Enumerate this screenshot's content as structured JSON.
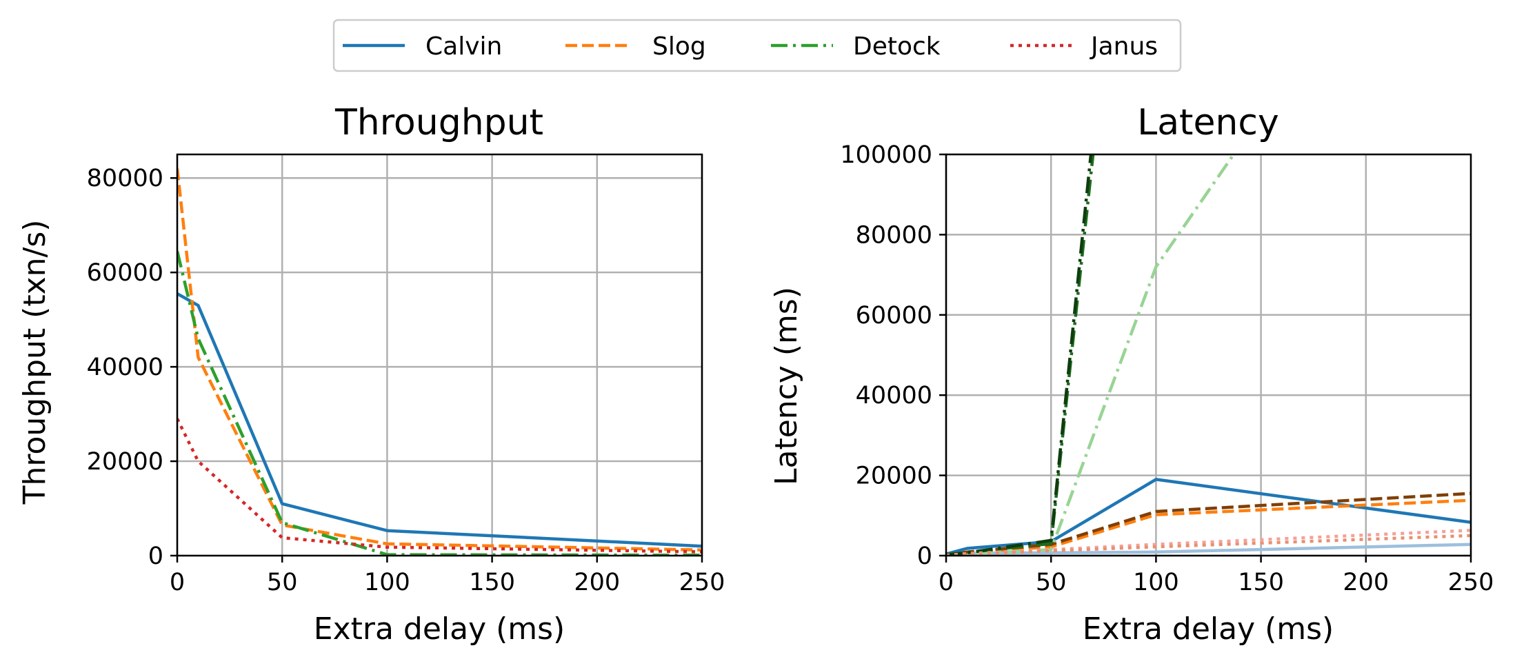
{
  "legend": {
    "items": [
      {
        "label": "Calvin",
        "color": "#1f77b4",
        "style": "solid"
      },
      {
        "label": "Slog",
        "color": "#ff7f0e",
        "style": "dashed"
      },
      {
        "label": "Detock",
        "color": "#2ca02c",
        "style": "dashdot"
      },
      {
        "label": "Janus",
        "color": "#d62728",
        "style": "dotted"
      }
    ]
  },
  "chart_data": [
    {
      "type": "line",
      "title": "Throughput",
      "xlabel": "Extra delay (ms)",
      "ylabel": "Throughput (txn/s)",
      "xlim": [
        0,
        250
      ],
      "ylim": [
        0,
        85000
      ],
      "xticks": [
        "0",
        "50",
        "100",
        "150",
        "200",
        "250"
      ],
      "yticks": [
        "0",
        "20000",
        "40000",
        "60000",
        "80000"
      ],
      "grid": true,
      "series": [
        {
          "name": "Calvin",
          "color": "#1f77b4",
          "style": "solid",
          "x": [
            0,
            10,
            50,
            100,
            250
          ],
          "y": [
            55500,
            53000,
            11000,
            5300,
            2000
          ]
        },
        {
          "name": "Slog",
          "color": "#ff7f0e",
          "style": "dashed",
          "x": [
            0,
            10,
            50,
            100,
            250
          ],
          "y": [
            82000,
            42000,
            6500,
            2500,
            1200
          ]
        },
        {
          "name": "Detock",
          "color": "#2ca02c",
          "style": "dashdot",
          "x": [
            0,
            10,
            50,
            100,
            250
          ],
          "y": [
            64500,
            46000,
            7000,
            200,
            100
          ]
        },
        {
          "name": "Janus",
          "color": "#d62728",
          "style": "dotted",
          "x": [
            0,
            10,
            50,
            100,
            250
          ],
          "y": [
            29000,
            20000,
            3800,
            1800,
            800
          ]
        }
      ]
    },
    {
      "type": "line",
      "title": "Latency",
      "xlabel": "Extra delay (ms)",
      "ylabel": "Latency (ms)",
      "xlim": [
        0,
        250
      ],
      "ylim": [
        0,
        100000
      ],
      "xticks": [
        "0",
        "50",
        "100",
        "150",
        "200",
        "250"
      ],
      "yticks": [
        "0",
        "20000",
        "40000",
        "60000",
        "80000",
        "100000"
      ],
      "grid": true,
      "series": [
        {
          "name": "Calvin",
          "color": "#9dbfdd",
          "style": "solid",
          "x": [
            0,
            10,
            50,
            100,
            250
          ],
          "y": [
            300,
            600,
            700,
            900,
            2800
          ]
        },
        {
          "name": "Calvin",
          "color": "#1f77b4",
          "style": "solid",
          "x": [
            0,
            10,
            50,
            100,
            250
          ],
          "y": [
            400,
            1800,
            3500,
            19000,
            8300
          ]
        },
        {
          "name": "Slog",
          "color": "#ff7f0e",
          "style": "dashed",
          "x": [
            0,
            10,
            50,
            100,
            250
          ],
          "y": [
            200,
            800,
            2200,
            10200,
            13800
          ]
        },
        {
          "name": "Slog",
          "color": "#7f3f07",
          "style": "dashed",
          "x": [
            0,
            10,
            50,
            100,
            250
          ],
          "y": [
            200,
            900,
            2800,
            11000,
            15500
          ]
        },
        {
          "name": "Detock",
          "color": "#98d494",
          "style": "dashdot",
          "x": [
            0,
            10,
            50,
            100,
            137
          ],
          "y": [
            200,
            500,
            1500,
            72000,
            100000
          ]
        },
        {
          "name": "Detock",
          "color": "#1d6b1d",
          "style": "dashdot",
          "x": [
            0,
            10,
            50,
            70
          ],
          "y": [
            200,
            800,
            3000,
            100000
          ]
        },
        {
          "name": "Detock",
          "color": "#0f3d0f",
          "style": "dashdot",
          "x": [
            0,
            10,
            50,
            69
          ],
          "y": [
            200,
            700,
            3800,
            100000
          ]
        },
        {
          "name": "Janus",
          "color": "#f4a09a",
          "style": "dotted",
          "x": [
            0,
            10,
            50,
            100,
            250
          ],
          "y": [
            100,
            500,
            1500,
            2800,
            6300
          ]
        },
        {
          "name": "Janus",
          "color": "#e8906e",
          "style": "dotted",
          "x": [
            0,
            10,
            50,
            100,
            250
          ],
          "y": [
            100,
            400,
            1200,
            2200,
            5000
          ]
        }
      ]
    }
  ]
}
